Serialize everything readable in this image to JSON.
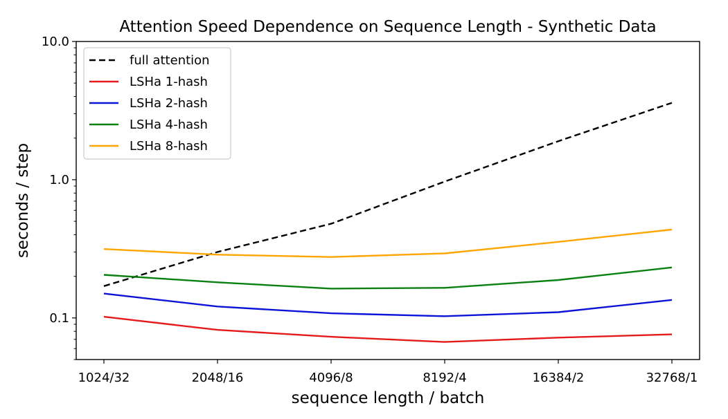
{
  "chart_data": {
    "type": "line",
    "title": "Attention Speed Dependence on Sequence Length - Synthetic Data",
    "xlabel": "sequence length / batch",
    "ylabel": "seconds / step",
    "yscale": "log",
    "ylim": [
      0.05,
      10.0
    ],
    "categories": [
      "1024/32",
      "2048/16",
      "4096/8",
      "8192/4",
      "16384/2",
      "32768/1"
    ],
    "yticks": [
      {
        "value": 0.1,
        "label": "0.1"
      },
      {
        "value": 1.0,
        "label": "1.0"
      },
      {
        "value": 10.0,
        "label": "10.0"
      }
    ],
    "legend_position": "upper-left",
    "series": [
      {
        "name": "full attention",
        "color": "#000000",
        "dashed": true,
        "values": [
          0.17,
          0.3,
          0.48,
          0.97,
          1.9,
          3.6
        ]
      },
      {
        "name": "LSHa 1-hash",
        "color": "#e41a1c",
        "dashed": false,
        "values": [
          0.102,
          0.082,
          0.073,
          0.067,
          0.072,
          0.076
        ]
      },
      {
        "name": "LSHa 2-hash",
        "color": "#0b14d6",
        "dashed": false,
        "values": [
          0.15,
          0.121,
          0.108,
          0.103,
          0.11,
          0.135
        ]
      },
      {
        "name": "LSHa 4-hash",
        "color": "#0a8010",
        "dashed": false,
        "values": [
          0.205,
          0.181,
          0.163,
          0.165,
          0.188,
          0.232
        ]
      },
      {
        "name": "LSHa 8-hash",
        "color": "#ffa500",
        "dashed": false,
        "values": [
          0.315,
          0.287,
          0.276,
          0.293,
          0.355,
          0.436
        ]
      }
    ]
  }
}
